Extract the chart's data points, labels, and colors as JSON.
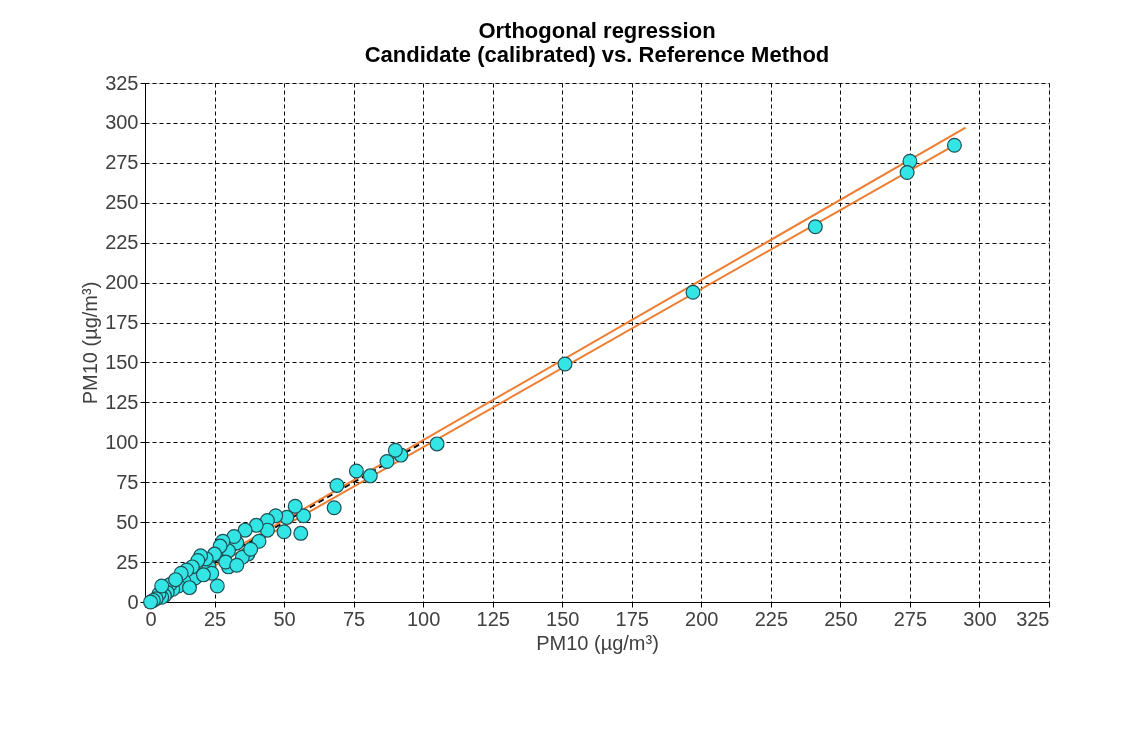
{
  "chart_data": {
    "type": "scatter",
    "title": [
      "Orthogonal regression",
      "Candidate (calibrated)  vs. Reference Method"
    ],
    "xlabel": "PM10 (µg/m³)",
    "ylabel": "PM10 (µg/m³)",
    "xlim": [
      0,
      325
    ],
    "ylim": [
      0,
      325
    ],
    "xticks": [
      0,
      25,
      50,
      75,
      100,
      125,
      150,
      175,
      200,
      225,
      250,
      275,
      300,
      325
    ],
    "yticks": [
      0,
      25,
      50,
      75,
      100,
      125,
      150,
      175,
      200,
      225,
      250,
      275,
      300,
      325
    ],
    "grid": true,
    "marker": "circle",
    "series": [
      {
        "type": "line",
        "color": "#000000",
        "line_style": "dashed",
        "marker": "none",
        "x": [
          0,
          100
        ],
        "values": [
          0,
          100
        ]
      },
      {
        "type": "line",
        "color": "#ed7d31",
        "line_style": "solid",
        "marker": "none",
        "x": [
          0,
          295
        ],
        "values": [
          1,
          297
        ]
      },
      {
        "type": "line",
        "color": "#ed7d31",
        "line_style": "solid",
        "marker": "none",
        "x": [
          2,
          292
        ],
        "values": [
          0,
          287
        ]
      },
      {
        "color": "#33e5e5",
        "x": [
          291,
          275,
          274,
          241,
          197,
          151,
          105,
          92,
          90,
          87,
          81,
          76,
          69,
          68,
          57,
          56,
          54,
          51,
          50,
          47,
          44,
          44,
          41,
          40,
          37,
          36,
          33,
          32,
          30,
          28,
          27,
          26,
          25,
          23,
          22,
          20,
          19,
          18,
          17,
          15,
          14,
          13,
          12,
          10,
          9,
          8,
          7,
          6,
          5,
          4,
          3,
          2,
          30,
          35,
          38,
          24,
          21,
          16,
          11,
          6,
          29,
          33
        ],
        "values": [
          286,
          276,
          269,
          235,
          194,
          149,
          99,
          92,
          95,
          88,
          79,
          82,
          73,
          59,
          54,
          43,
          60,
          53,
          44,
          54,
          51,
          45,
          38,
          48,
          30,
          45,
          37,
          41,
          32,
          38,
          35,
          10,
          30,
          22,
          27,
          29,
          26,
          15,
          22,
          20,
          13,
          18,
          10,
          8,
          11,
          6,
          4,
          3,
          5,
          2,
          1,
          0,
          22,
          28,
          33,
          18,
          17,
          9,
          14,
          10,
          25,
          23
        ]
      }
    ]
  }
}
